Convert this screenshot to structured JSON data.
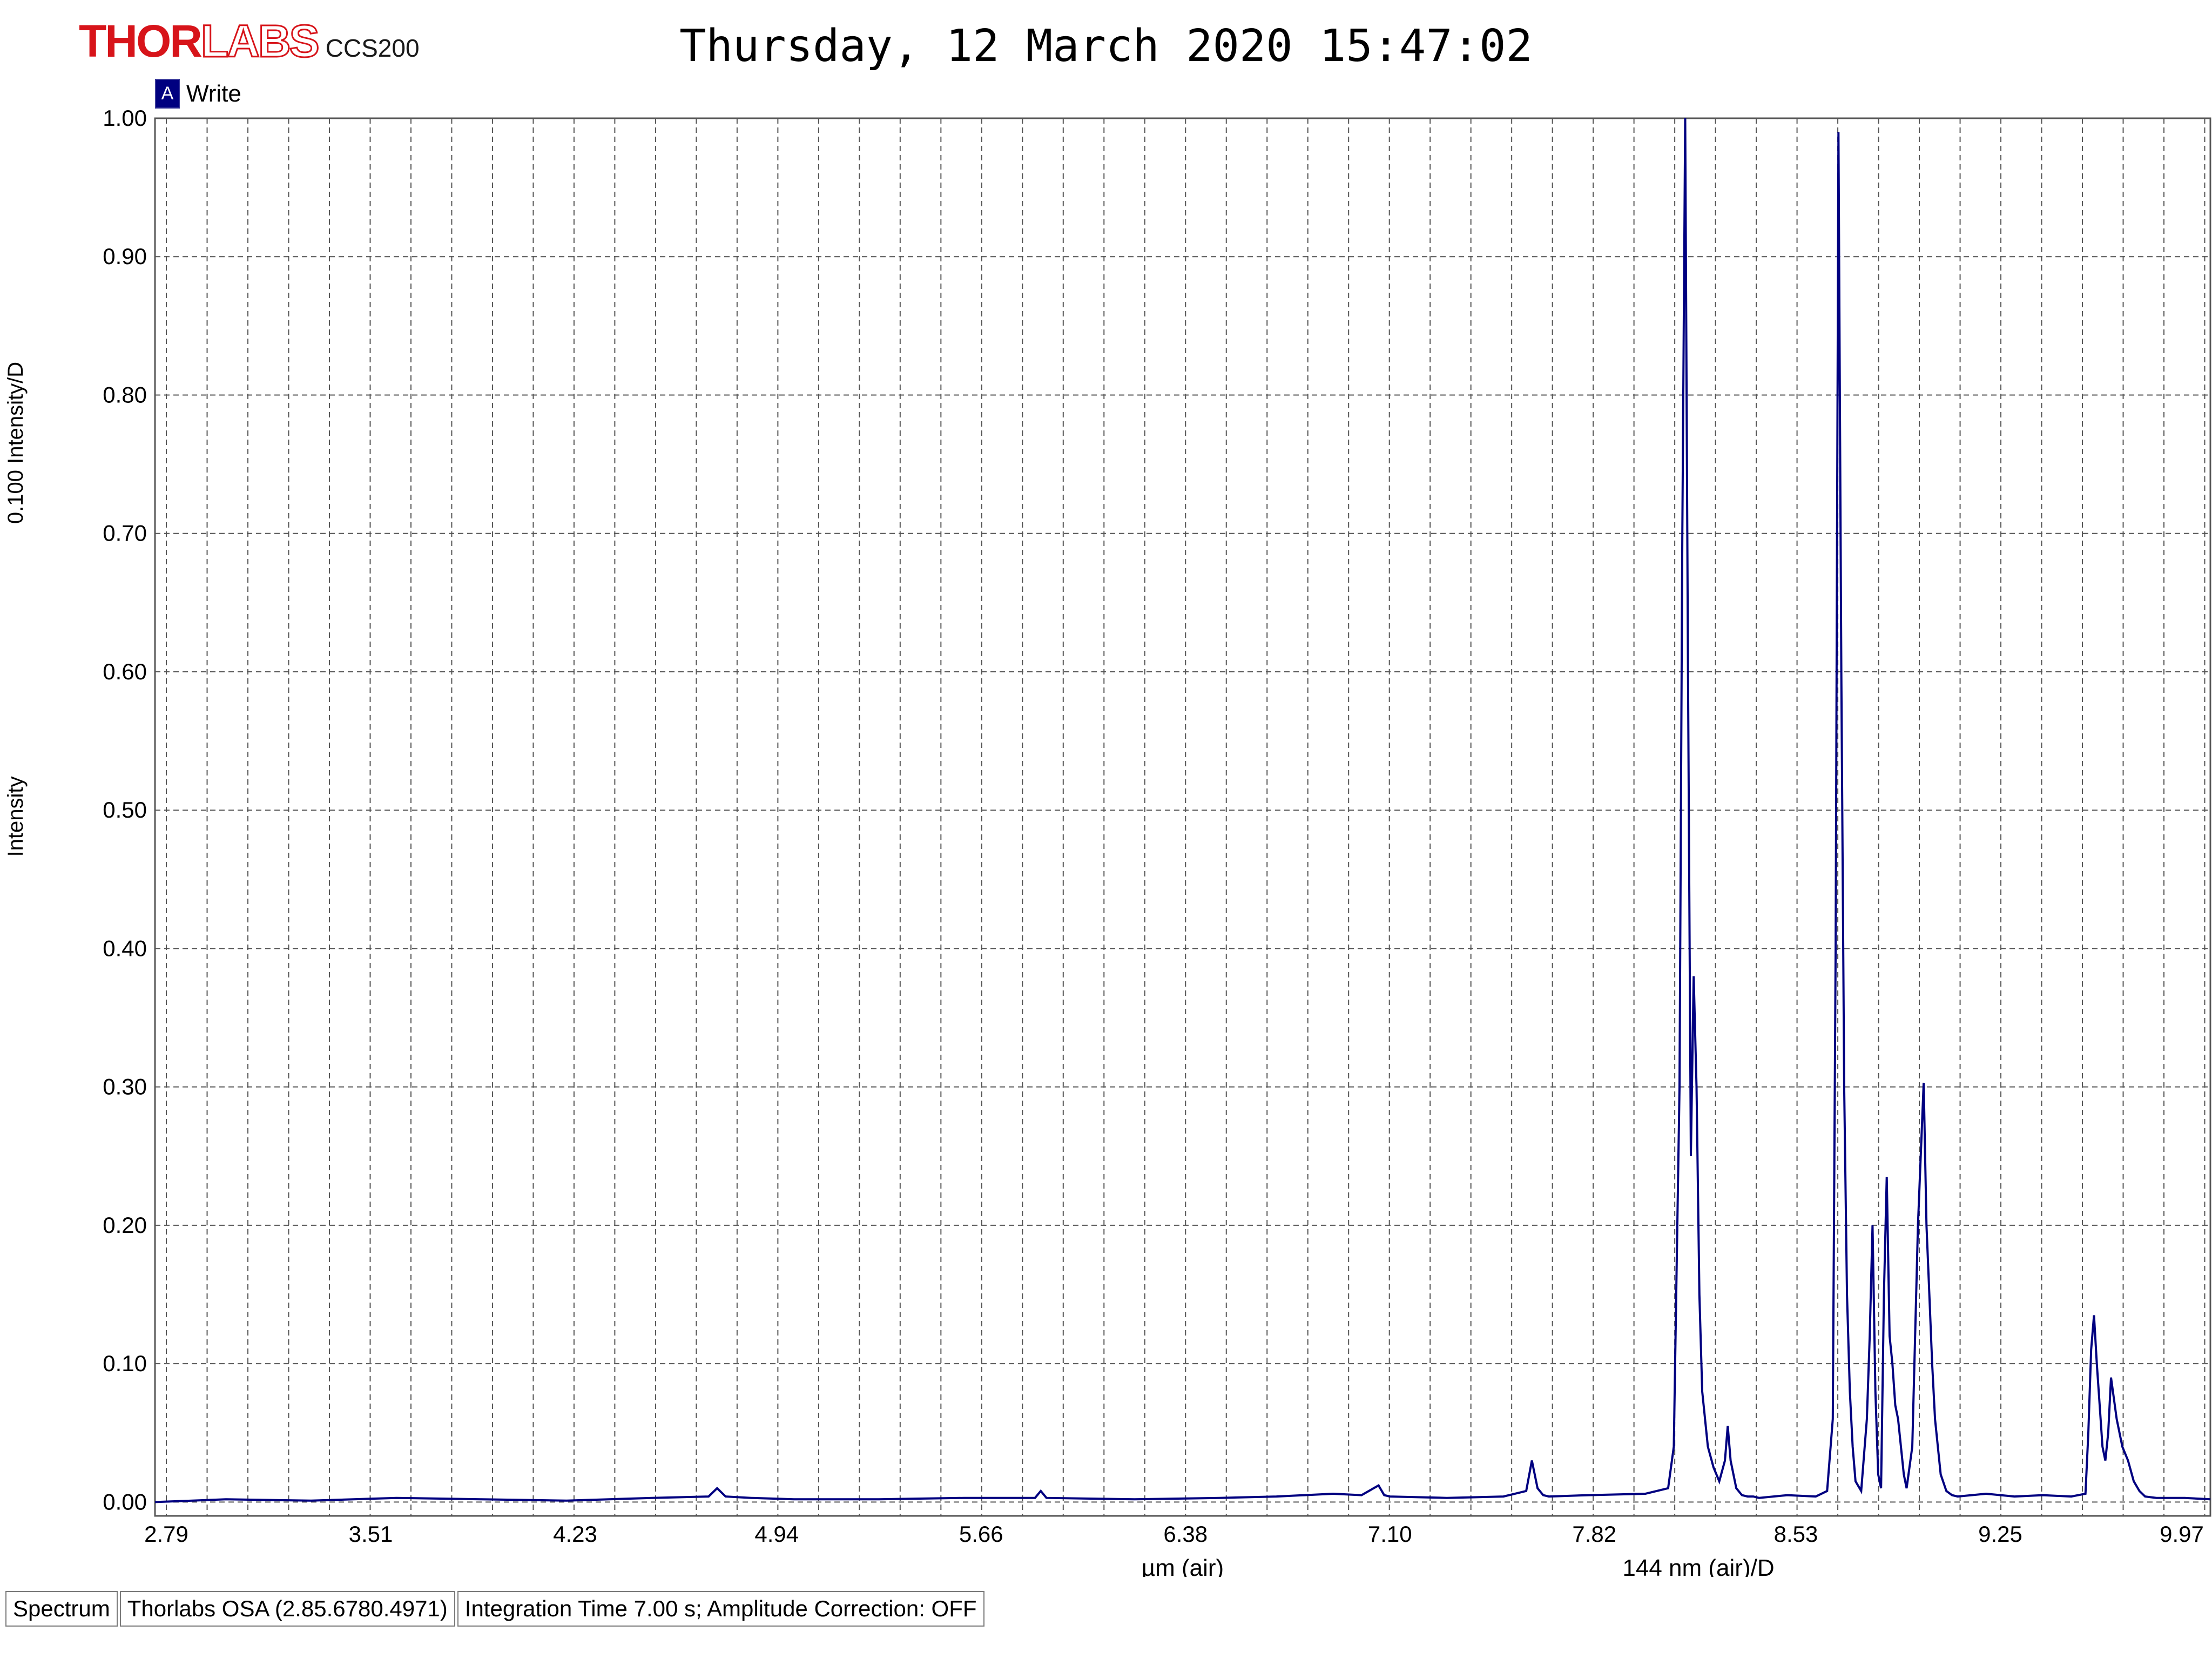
{
  "header": {
    "brand_thor": "THOR",
    "brand_labs": "LABS",
    "model": "CCS200",
    "datetime": "Thursday, 12 March 2020 15:47:02"
  },
  "legend": {
    "marker": "A",
    "label": "Write",
    "color": "#000080"
  },
  "status_bar": {
    "mode": "Spectrum",
    "software": "Thorlabs OSA (2.85.6780.4971)",
    "info": "Integration Time 7.00 s; Amplitude Correction: OFF"
  },
  "chart_data": {
    "type": "line",
    "title": "Thursday, 12 March 2020 15:47:02",
    "xlabel": "µm (air)",
    "xscale_label": "144 nm (air)/D",
    "ylabel": "Intensity",
    "yscale_label": "0.100 Intensity/D",
    "xlim": [
      2.75,
      9.99
    ],
    "ylim": [
      -0.01,
      1.0
    ],
    "x_ticks": [
      "2.79",
      "3.51",
      "4.23",
      "4.94",
      "5.66",
      "6.38",
      "7.10",
      "7.82",
      "8.53",
      "9.25",
      "9.97"
    ],
    "y_ticks": [
      "0.00",
      "0.10",
      "0.20",
      "0.30",
      "0.40",
      "0.50",
      "0.60",
      "0.70",
      "0.80",
      "0.90",
      "1.00"
    ],
    "grid": true,
    "series": [
      {
        "name": "Write",
        "color": "#000080",
        "x": [
          2.75,
          3.0,
          3.3,
          3.6,
          3.9,
          4.2,
          4.5,
          4.7,
          4.73,
          4.76,
          4.85,
          5.0,
          5.3,
          5.6,
          5.85,
          5.87,
          5.89,
          6.2,
          6.5,
          6.7,
          6.9,
          7.0,
          7.06,
          7.08,
          7.1,
          7.3,
          7.5,
          7.58,
          7.6,
          7.62,
          7.64,
          7.66,
          7.8,
          8.0,
          8.08,
          8.1,
          8.12,
          8.13,
          8.14,
          8.15,
          8.16,
          8.17,
          8.18,
          8.19,
          8.2,
          8.22,
          8.24,
          8.26,
          8.28,
          8.29,
          8.3,
          8.32,
          8.34,
          8.36,
          8.38,
          8.4,
          8.5,
          8.6,
          8.64,
          8.66,
          8.67,
          8.68,
          8.69,
          8.7,
          8.71,
          8.72,
          8.73,
          8.74,
          8.76,
          8.78,
          8.79,
          8.8,
          8.81,
          8.82,
          8.83,
          8.84,
          8.85,
          8.86,
          8.87,
          8.88,
          8.89,
          8.9,
          8.91,
          8.92,
          8.94,
          8.96,
          8.98,
          8.99,
          9.0,
          9.01,
          9.02,
          9.04,
          9.06,
          9.08,
          9.1,
          9.2,
          9.3,
          9.4,
          9.5,
          9.55,
          9.56,
          9.57,
          9.58,
          9.59,
          9.6,
          9.61,
          9.62,
          9.63,
          9.64,
          9.66,
          9.68,
          9.7,
          9.72,
          9.74,
          9.76,
          9.8,
          9.9,
          9.99
        ],
        "y": [
          0.0,
          0.002,
          0.001,
          0.003,
          0.002,
          0.001,
          0.003,
          0.004,
          0.01,
          0.004,
          0.003,
          0.002,
          0.002,
          0.003,
          0.003,
          0.008,
          0.003,
          0.002,
          0.003,
          0.004,
          0.006,
          0.005,
          0.012,
          0.005,
          0.004,
          0.003,
          0.004,
          0.008,
          0.03,
          0.01,
          0.005,
          0.004,
          0.005,
          0.006,
          0.01,
          0.04,
          0.3,
          0.7,
          1.0,
          0.6,
          0.25,
          0.38,
          0.3,
          0.15,
          0.08,
          0.04,
          0.025,
          0.015,
          0.03,
          0.055,
          0.03,
          0.01,
          0.005,
          0.004,
          0.004,
          0.003,
          0.005,
          0.004,
          0.008,
          0.06,
          0.4,
          0.99,
          0.6,
          0.3,
          0.15,
          0.08,
          0.04,
          0.015,
          0.008,
          0.06,
          0.12,
          0.2,
          0.08,
          0.02,
          0.01,
          0.15,
          0.235,
          0.12,
          0.1,
          0.07,
          0.06,
          0.04,
          0.02,
          0.01,
          0.04,
          0.2,
          0.303,
          0.2,
          0.15,
          0.1,
          0.06,
          0.02,
          0.008,
          0.005,
          0.004,
          0.006,
          0.004,
          0.005,
          0.004,
          0.006,
          0.05,
          0.11,
          0.135,
          0.1,
          0.07,
          0.04,
          0.03,
          0.05,
          0.09,
          0.06,
          0.04,
          0.03,
          0.015,
          0.008,
          0.004,
          0.003,
          0.003,
          0.002
        ]
      }
    ]
  }
}
